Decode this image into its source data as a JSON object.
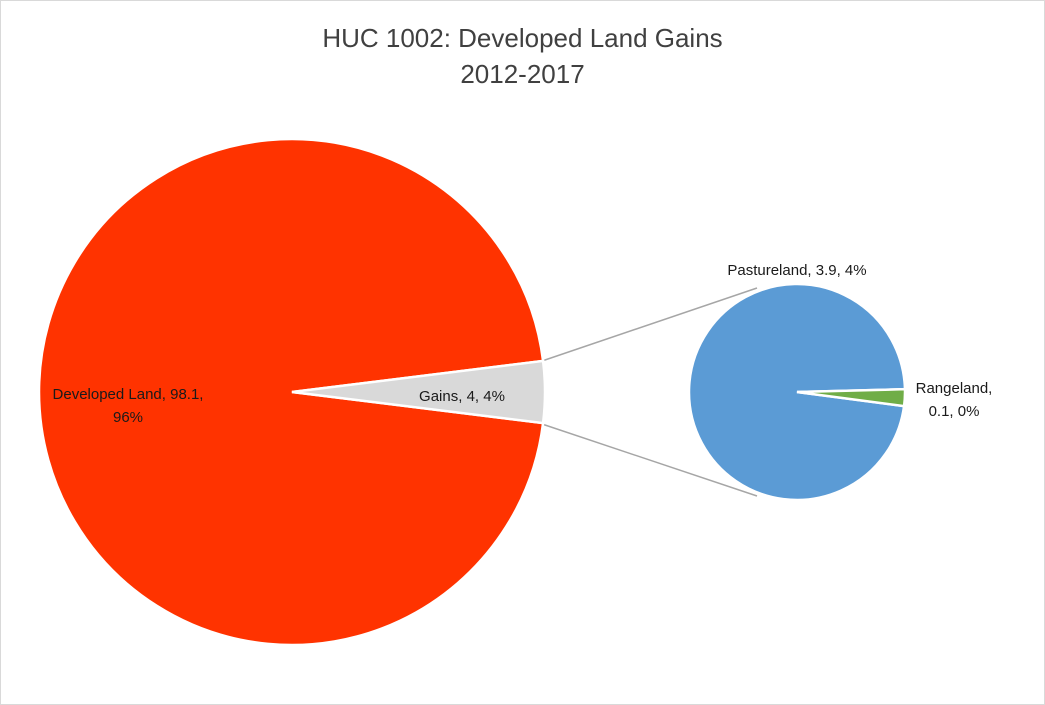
{
  "chart_data": {
    "type": "pie",
    "title": "HUC 1002: Developed Land Gains",
    "subtitle": "2012-2017",
    "primary_pie": {
      "slices": [
        {
          "name": "Developed Land",
          "value": 98.1,
          "percent": "96%",
          "color": "#ff3300",
          "label_line1": "Developed Land, 98.1,",
          "label_line2": "96%"
        },
        {
          "name": "Gains",
          "value": 4,
          "percent": "4%",
          "color": "#d9d9d9",
          "label_line1": "Gains, 4, 4%"
        }
      ]
    },
    "secondary_pie": {
      "source": "Gains",
      "slices": [
        {
          "name": "Pastureland",
          "value": 3.9,
          "percent": "4%",
          "color": "#5b9bd5",
          "label_line1": "Pastureland, 3.9, 4%"
        },
        {
          "name": "Rangeland",
          "value": 0.1,
          "percent": "0%",
          "color": "#70ad47",
          "label_line1": "Rangeland,",
          "label_line2": "0.1, 0%"
        }
      ]
    },
    "connector_color": "#a6a6a6"
  }
}
